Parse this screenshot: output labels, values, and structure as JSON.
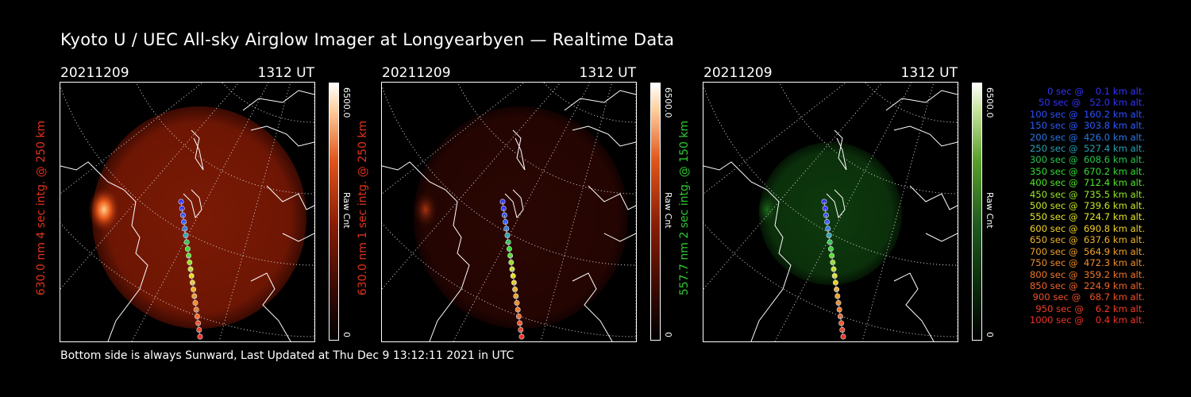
{
  "title": "Kyoto U / UEC All-sky Airglow Imager at Longyearbyen — Realtime Data",
  "footer": "Bottom side is always Sunward, Last Updated at Thu Dec  9 13:12:11 2021 in UTC",
  "colors": {
    "red_label": "#e2321b",
    "green_label": "#2fc82f"
  },
  "panels": [
    {
      "date": "20211209",
      "time": "1312 UT",
      "ylabel": "630.0 nm 4 sec intg. @ 250 km",
      "cbar_max": "6500.0",
      "cbar_min": "0",
      "cbar_unit": "Raw Cnt",
      "colormap": "red",
      "intensity_level": 0.55
    },
    {
      "date": "20211209",
      "time": "1312 UT",
      "ylabel": "630.0 nm 1 sec intg. @ 250 km",
      "cbar_max": "6500.0",
      "cbar_min": "0",
      "cbar_unit": "Raw Cnt",
      "colormap": "red",
      "intensity_level": 0.15
    },
    {
      "date": "20211209",
      "time": "1312 UT",
      "ylabel": "557.7 nm 2 sec intg. @ 150 km",
      "cbar_max": "6500.0",
      "cbar_min": "0",
      "cbar_unit": "Raw Cnt",
      "colormap": "green",
      "intensity_level": 0.25
    }
  ],
  "legend": [
    {
      "text": "0 sec @    0.1 km alt.",
      "color": "#3232ff"
    },
    {
      "text": "50 sec @   52.0 km alt.",
      "color": "#3232ff"
    },
    {
      "text": "100 sec @  160.2 km alt.",
      "color": "#2d50ff"
    },
    {
      "text": "150 sec @  303.8 km alt.",
      "color": "#2d5aff"
    },
    {
      "text": "200 sec @  426.0 km alt.",
      "color": "#2878e6"
    },
    {
      "text": "250 sec @  527.4 km alt.",
      "color": "#28a0b4"
    },
    {
      "text": "300 sec @  608.6 km alt.",
      "color": "#28c850"
    },
    {
      "text": "350 sec @  670.2 km alt.",
      "color": "#32dc32"
    },
    {
      "text": "400 sec @  712.4 km alt.",
      "color": "#50e628"
    },
    {
      "text": "450 sec @  735.5 km alt.",
      "color": "#96e628"
    },
    {
      "text": "500 sec @  739.6 km alt.",
      "color": "#c8e628"
    },
    {
      "text": "550 sec @  724.7 km alt.",
      "color": "#e6e628"
    },
    {
      "text": "600 sec @  690.8 km alt.",
      "color": "#f0d228"
    },
    {
      "text": "650 sec @  637.6 km alt.",
      "color": "#f0b428"
    },
    {
      "text": "700 sec @  564.9 km alt.",
      "color": "#f0a028"
    },
    {
      "text": "750 sec @  472.3 km alt.",
      "color": "#f08c28"
    },
    {
      "text": "800 sec @  359.2 km alt.",
      "color": "#f07828"
    },
    {
      "text": "850 sec @  224.9 km alt.",
      "color": "#f06428"
    },
    {
      "text": "900 sec @   68.7 km alt.",
      "color": "#f05028"
    },
    {
      "text": "950 sec @    6.2 km alt.",
      "color": "#f03c28"
    },
    {
      "text": "1000 sec @    0.4 km alt.",
      "color": "#f03228"
    }
  ]
}
